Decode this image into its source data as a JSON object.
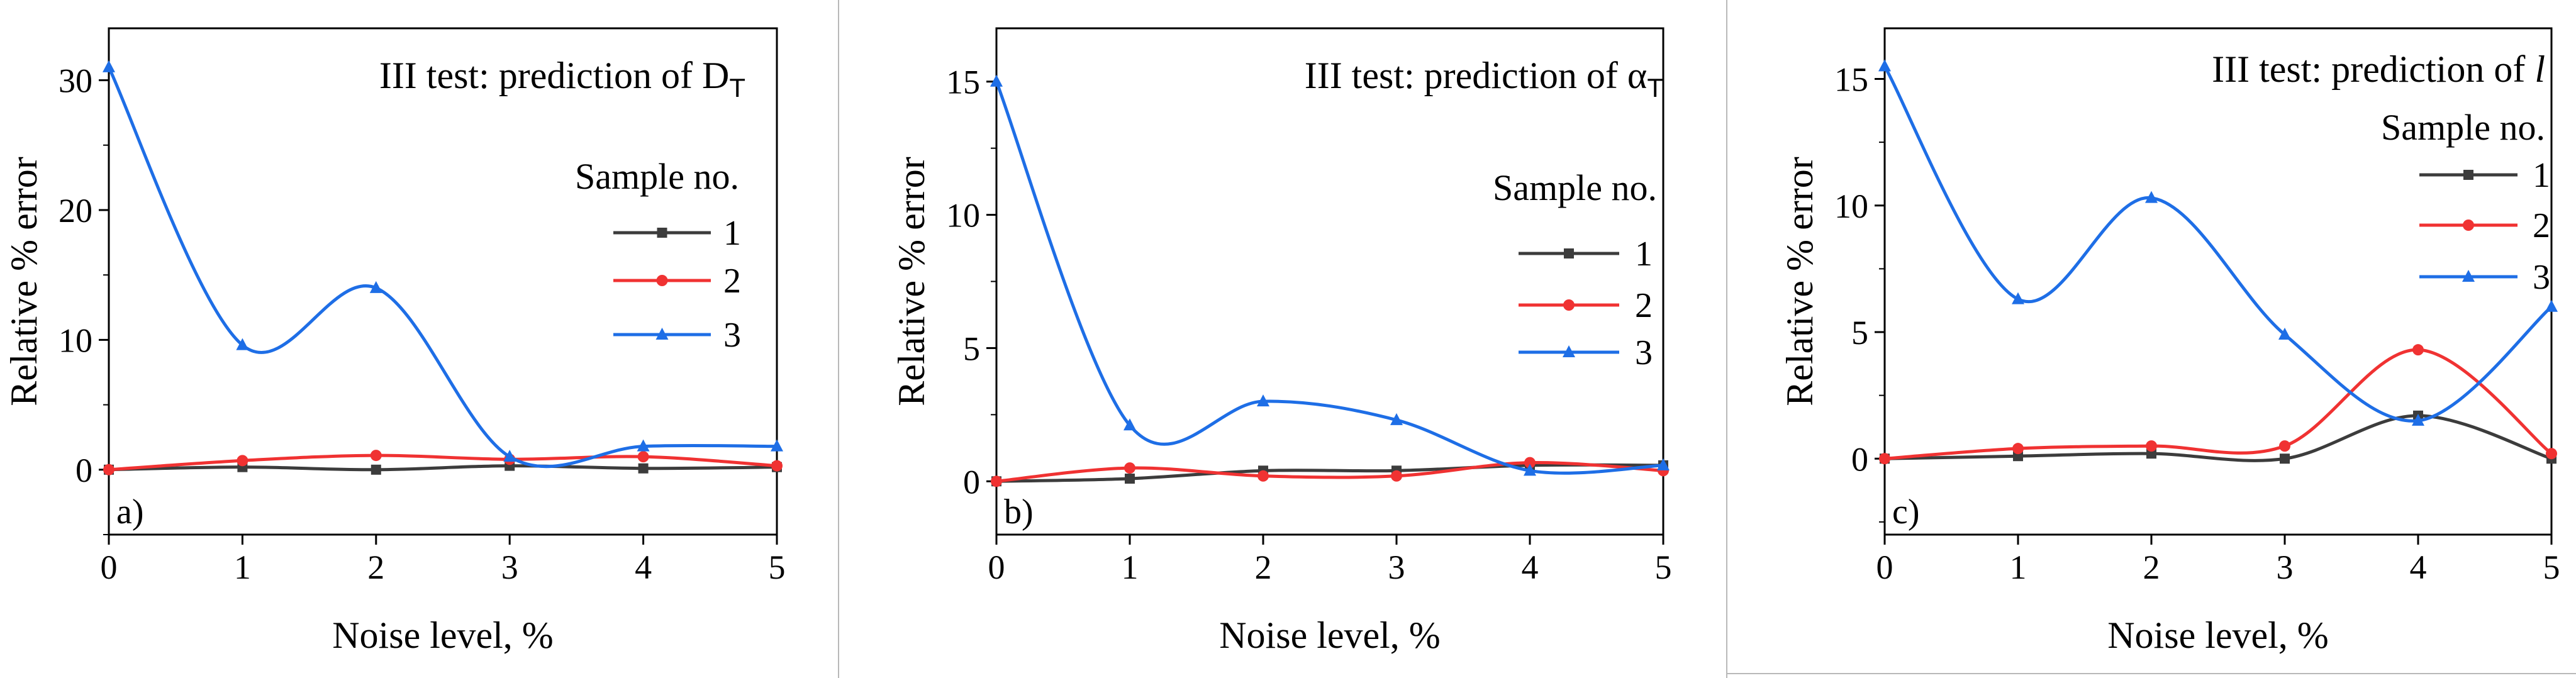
{
  "figure_colors": {
    "series_1": "#3c3c3c",
    "series_2": "#f03232",
    "series_3": "#1e6ee6"
  },
  "chart_data": [
    {
      "type": "line",
      "panel_label": "a)",
      "title": "III test: prediction of D",
      "title_subscript": "T",
      "xlabel": "Noise level, %",
      "ylabel": "Relative % error",
      "xlim": [
        0,
        5
      ],
      "ylim": [
        -5,
        34
      ],
      "xticks": [
        "0",
        "1",
        "2",
        "3",
        "4",
        "5"
      ],
      "yticks": [
        0,
        10,
        20,
        30
      ],
      "ytick_labels": [
        "0",
        "10",
        "20",
        "30"
      ],
      "legend_title": "Sample no.",
      "x": [
        0,
        1,
        2,
        3,
        4,
        5
      ],
      "series": [
        {
          "name": "1",
          "marker": "square",
          "values": [
            0,
            0.2,
            0,
            0.3,
            0.1,
            0.2
          ]
        },
        {
          "name": "2",
          "marker": "circle",
          "values": [
            0,
            0.7,
            1.1,
            0.8,
            1.0,
            0.3
          ]
        },
        {
          "name": "3",
          "marker": "triangle",
          "values": [
            31,
            9.6,
            14,
            1.0,
            1.8,
            1.8
          ]
        }
      ]
    },
    {
      "type": "line",
      "panel_label": "b)",
      "title": "III test: prediction of α",
      "title_subscript": "T",
      "xlabel": "Noise level, %",
      "ylabel": "Relative % error",
      "xlim": [
        0,
        5
      ],
      "ylim": [
        -2,
        17
      ],
      "xticks": [
        "0",
        "1",
        "2",
        "3",
        "4",
        "5"
      ],
      "yticks": [
        0,
        5,
        10,
        15
      ],
      "ytick_labels": [
        "0",
        "5",
        "10",
        "15"
      ],
      "legend_title": "Sample no.",
      "x": [
        0,
        1,
        2,
        3,
        4,
        5
      ],
      "series": [
        {
          "name": "1",
          "marker": "square",
          "values": [
            0,
            0.1,
            0.4,
            0.4,
            0.6,
            0.6
          ]
        },
        {
          "name": "2",
          "marker": "circle",
          "values": [
            0,
            0.5,
            0.2,
            0.2,
            0.7,
            0.4
          ]
        },
        {
          "name": "3",
          "marker": "triangle",
          "values": [
            15,
            2.1,
            3.0,
            2.3,
            0.4,
            0.6
          ]
        }
      ]
    },
    {
      "type": "line",
      "panel_label": "c)",
      "title": "III test: prediction of ",
      "title_italic": "l",
      "xlabel": "Noise level, %",
      "ylabel": "Relative % error",
      "xlim": [
        0,
        5
      ],
      "ylim": [
        -3,
        17
      ],
      "xticks": [
        "0",
        "1",
        "2",
        "3",
        "4",
        "5"
      ],
      "yticks": [
        0,
        5,
        10,
        15
      ],
      "ytick_labels": [
        "0",
        "5",
        "10",
        "15"
      ],
      "legend_title": "Sample no.",
      "x": [
        0,
        1,
        2,
        3,
        4,
        5
      ],
      "series": [
        {
          "name": "1",
          "marker": "square",
          "values": [
            0,
            0.1,
            0.2,
            0,
            1.7,
            0
          ]
        },
        {
          "name": "2",
          "marker": "circle",
          "values": [
            0,
            0.4,
            0.5,
            0.5,
            4.3,
            0.2
          ]
        },
        {
          "name": "3",
          "marker": "triangle",
          "values": [
            15.5,
            6.3,
            10.3,
            4.9,
            1.5,
            6.0
          ]
        }
      ]
    }
  ]
}
